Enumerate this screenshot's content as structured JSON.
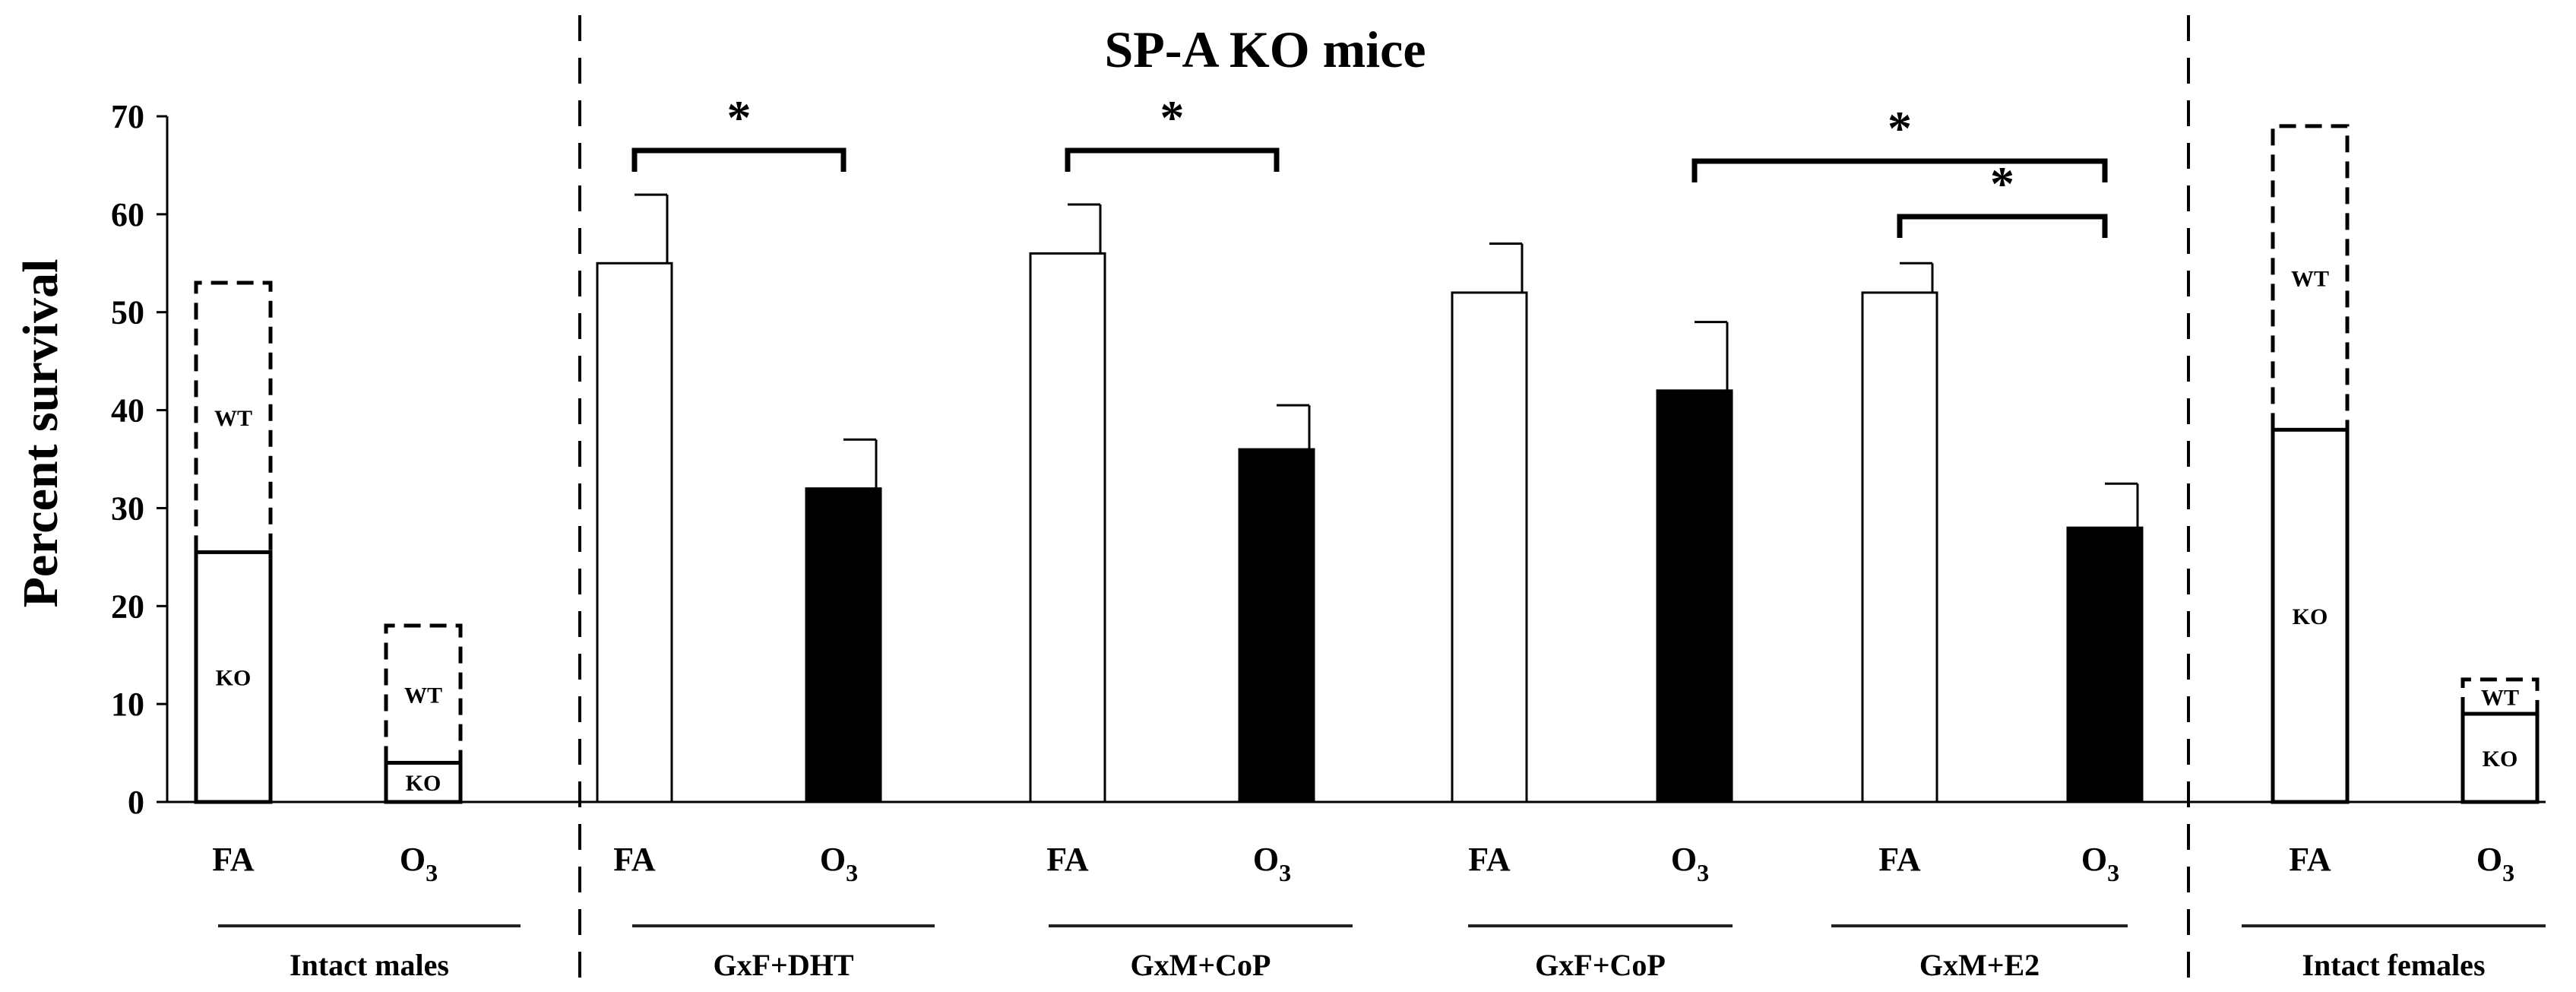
{
  "chart_data": {
    "type": "bar",
    "title": "SP-A KO mice",
    "ylabel": "Percent survival",
    "xlabel": "",
    "ylim": [
      0,
      70
    ],
    "yticks": [
      0,
      10,
      20,
      30,
      40,
      50,
      60,
      70
    ],
    "grid": false,
    "bars": [
      {
        "group": "Intact males",
        "label": "FA",
        "value": 25.5,
        "stack": [
          {
            "name": "KO",
            "value": 25.5,
            "style": "solid"
          },
          {
            "name": "WT",
            "value": 53,
            "style": "dashed"
          }
        ]
      },
      {
        "group": "Intact males",
        "label": "O3",
        "value": 4,
        "stack": [
          {
            "name": "KO",
            "value": 4,
            "style": "solid"
          },
          {
            "name": "WT",
            "value": 18,
            "style": "dashed"
          }
        ]
      },
      {
        "group": "GxF+DHT",
        "label": "FA",
        "value": 55,
        "error": 7,
        "fill": "white"
      },
      {
        "group": "GxF+DHT",
        "label": "O3",
        "value": 32,
        "error": 5,
        "fill": "black"
      },
      {
        "group": "GxM+CoP",
        "label": "FA",
        "value": 56,
        "error": 5,
        "fill": "white"
      },
      {
        "group": "GxM+CoP",
        "label": "O3",
        "value": 36,
        "error": 4.5,
        "fill": "black"
      },
      {
        "group": "GxF+CoP",
        "label": "FA",
        "value": 52,
        "error": 5,
        "fill": "white"
      },
      {
        "group": "GxF+CoP",
        "label": "O3",
        "value": 42,
        "error": 7,
        "fill": "black"
      },
      {
        "group": "GxM+E2",
        "label": "FA",
        "value": 52,
        "error": 3,
        "fill": "white"
      },
      {
        "group": "GxM+E2",
        "label": "O3",
        "value": 28,
        "error": 4.5,
        "fill": "black"
      },
      {
        "group": "Intact females",
        "label": "FA",
        "value": 38,
        "stack": [
          {
            "name": "KO",
            "value": 38,
            "style": "solid"
          },
          {
            "name": "WT",
            "value": 69,
            "style": "dashed"
          }
        ]
      },
      {
        "group": "Intact females",
        "label": "O3",
        "value": 9,
        "stack": [
          {
            "name": "KO",
            "value": 9,
            "style": "solid"
          },
          {
            "name": "WT",
            "value": 12.5,
            "style": "dashed"
          }
        ]
      }
    ],
    "groups": [
      "Intact males",
      "GxF+DHT",
      "GxM+CoP",
      "GxF+CoP",
      "GxM+E2",
      "Intact females"
    ],
    "significance": [
      {
        "from": 0,
        "to": 1,
        "label": "*",
        "group": "GxF+DHT"
      },
      {
        "from": 0,
        "to": 1,
        "label": "*",
        "group": "GxM+CoP"
      },
      {
        "from": "GxF+CoP:O3",
        "to": "GxM+E2:O3",
        "label": "*"
      },
      {
        "from": "GxM+E2:FA",
        "to": "GxM+E2:O3",
        "label": "*"
      }
    ],
    "tick_labels": {
      "fa": "FA",
      "o3_main": "O",
      "o3_sub": "3"
    },
    "stack_labels": {
      "ko": "KO",
      "wt": "WT"
    }
  }
}
